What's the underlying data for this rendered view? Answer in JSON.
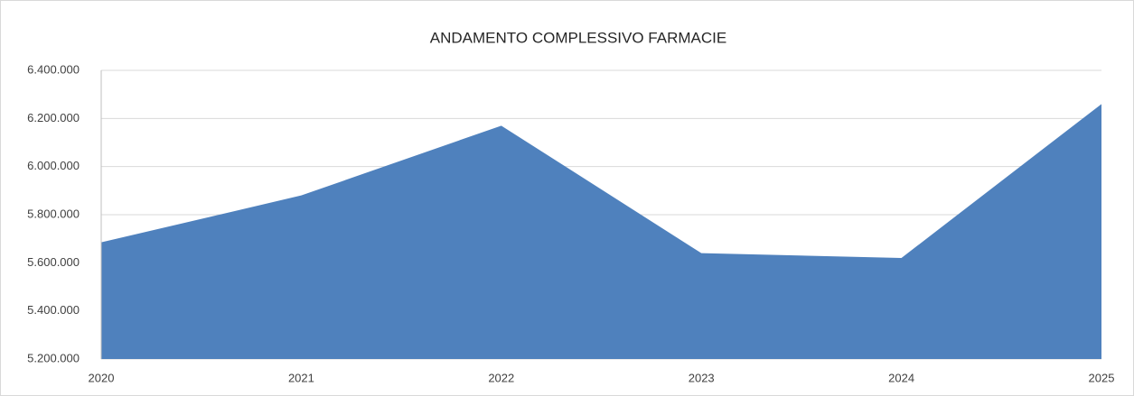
{
  "chart_data": {
    "type": "area",
    "title": "ANDAMENTO COMPLESSIVO FARMACIE",
    "categories": [
      "2020",
      "2021",
      "2022",
      "2023",
      "2024",
      "2025"
    ],
    "values": [
      5685000,
      5880000,
      6170000,
      5640000,
      5620000,
      6260000
    ],
    "color": "#4f81bd",
    "ylim": [
      5200000,
      6400000
    ],
    "yticks": [
      {
        "value": 5200000,
        "label": "5.200.000"
      },
      {
        "value": 5400000,
        "label": "5.400.000"
      },
      {
        "value": 5600000,
        "label": "5.600.000"
      },
      {
        "value": 5800000,
        "label": "5.800.000"
      },
      {
        "value": 6000000,
        "label": "6.000.000"
      },
      {
        "value": 6200000,
        "label": "6.200.000"
      },
      {
        "value": 6400000,
        "label": "6.400.000"
      }
    ],
    "grid": true
  }
}
